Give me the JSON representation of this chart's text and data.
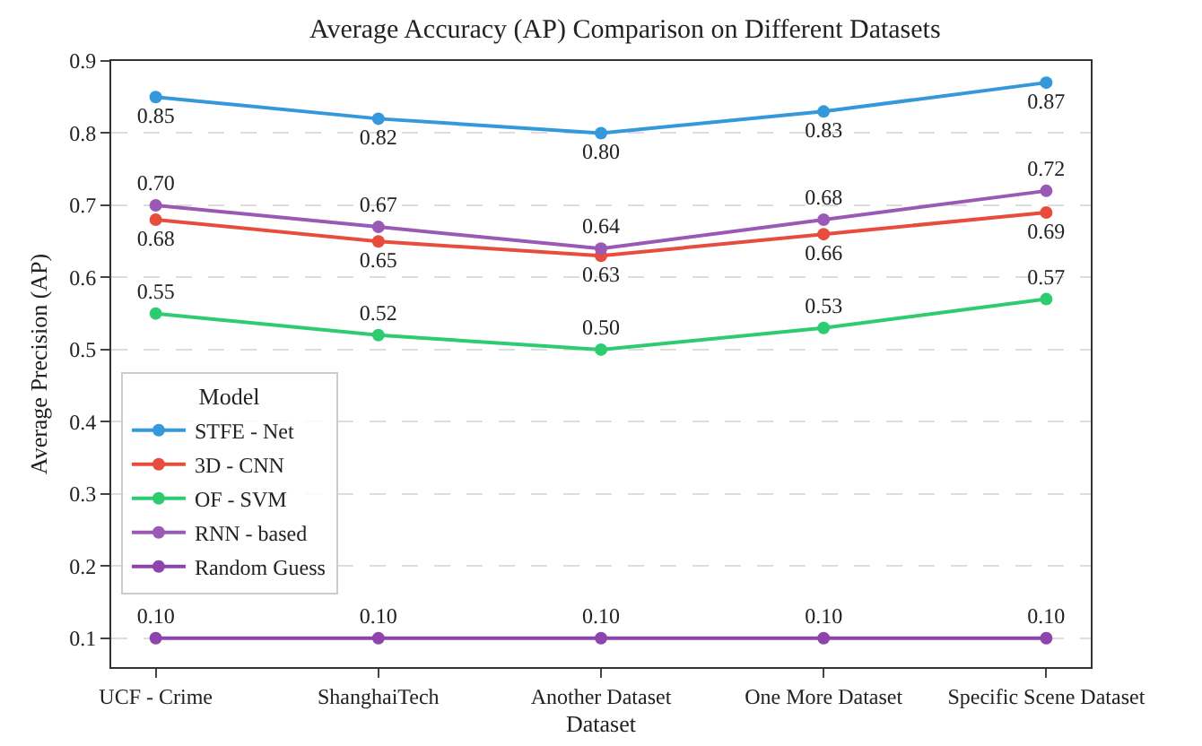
{
  "chart_data": {
    "type": "line",
    "title": "Average Accuracy (AP) Comparison on Different Datasets",
    "xlabel": "Dataset",
    "ylabel": "Average Precision (AP)",
    "legend_title": "Model",
    "categories": [
      "UCF - Crime",
      "ShanghaiTech",
      "Another Dataset",
      "One More Dataset",
      "Specific Scene Dataset"
    ],
    "series": [
      {
        "name": "STFE - Net",
        "color": "#3498db",
        "values": [
          0.85,
          0.82,
          0.8,
          0.83,
          0.87
        ],
        "value_labels": [
          "0.85",
          "0.82",
          "0.80",
          "0.83",
          "0.87"
        ]
      },
      {
        "name": "3D - CNN",
        "color": "#e74c3c",
        "values": [
          0.68,
          0.65,
          0.63,
          0.66,
          0.69
        ],
        "value_labels": [
          "0.68",
          "0.65",
          "0.63",
          "0.66",
          "0.69"
        ]
      },
      {
        "name": "OF - SVM",
        "color": "#2ecc71",
        "values": [
          0.55,
          0.52,
          0.5,
          0.53,
          0.57
        ],
        "value_labels": [
          "0.55",
          "0.52",
          "0.50",
          "0.53",
          "0.57"
        ]
      },
      {
        "name": "RNN - based",
        "color": "#9b59b6",
        "values": [
          0.7,
          0.67,
          0.64,
          0.68,
          0.72
        ],
        "value_labels": [
          "0.70",
          "0.67",
          "0.64",
          "0.68",
          "0.72"
        ]
      },
      {
        "name": "Random Guess",
        "color": "#8e44ad",
        "values": [
          0.1,
          0.1,
          0.1,
          0.1,
          0.1
        ],
        "value_labels": [
          "0.10",
          "0.10",
          "0.10",
          "0.10",
          "0.10"
        ]
      }
    ],
    "ylim": [
      0.06,
      0.9
    ],
    "yticks": [
      0.1,
      0.2,
      0.3,
      0.4,
      0.5,
      0.6,
      0.7,
      0.8,
      0.9
    ],
    "grid": "y",
    "legend": "bottom left",
    "marker": "circle",
    "line_style": "solid"
  }
}
